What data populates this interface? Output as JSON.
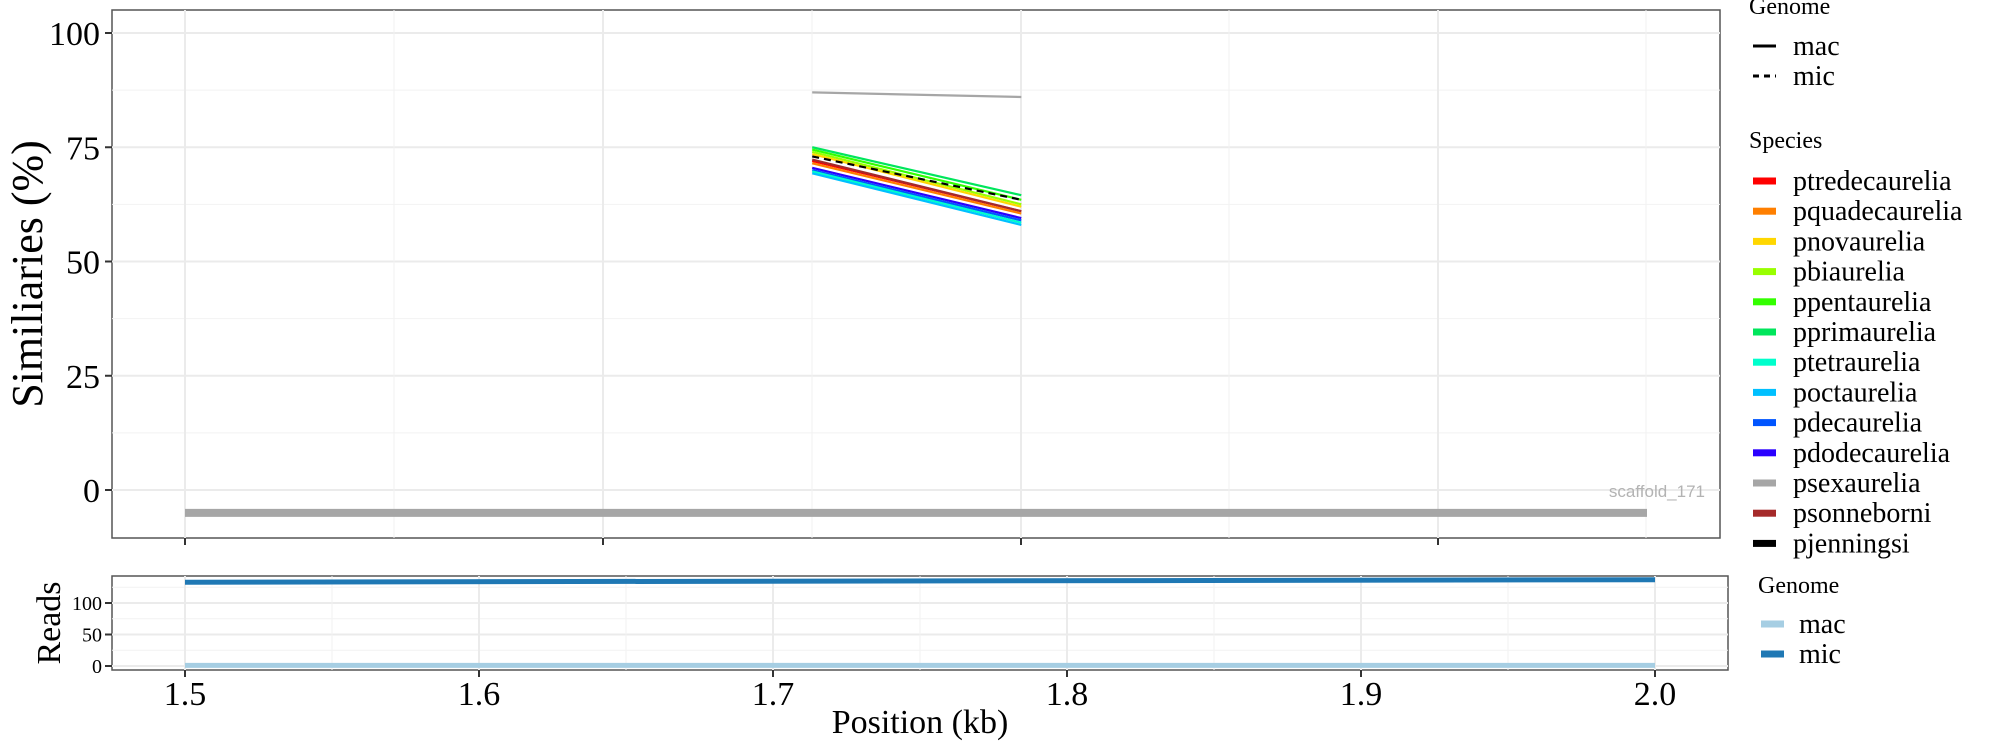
{
  "chart_data": [
    {
      "type": "line",
      "panel": "similarity",
      "ylabel": "Similiaries (%)",
      "xlabel": "",
      "ylim": [
        -10.5,
        105
      ],
      "xlim": [
        1.5,
        2.0
      ],
      "yticks": [
        "0",
        "25",
        "50",
        "75",
        "100"
      ],
      "ytick_values": [
        0,
        25,
        50,
        75,
        100
      ],
      "grid": true,
      "annotation": "scaffold_171",
      "scaffold_bar": {
        "x": [
          1.5,
          2.0
        ],
        "y": -5,
        "color": "#a6a6a6"
      },
      "series": [
        {
          "name": "psexaurelia",
          "genome": "mac",
          "color": "#a6a6a6",
          "x": [
            1.7145,
            1.786
          ],
          "y": [
            87,
            86
          ]
        },
        {
          "name": "pprimaurelia",
          "genome": "mac",
          "color": "#00e65c",
          "x": [
            1.7145,
            1.786
          ],
          "y": [
            75,
            64.5
          ]
        },
        {
          "name": "ppentaurelia",
          "genome": "mac",
          "color": "#33ff00",
          "x": [
            1.7145,
            1.786
          ],
          "y": [
            74.5,
            63.5
          ]
        },
        {
          "name": "pbiaurelia",
          "genome": "mac",
          "color": "#99ff00",
          "x": [
            1.7145,
            1.786
          ],
          "y": [
            74,
            62.5
          ]
        },
        {
          "name": "pnovaurelia",
          "genome": "mac",
          "color": "#ffd700",
          "x": [
            1.7145,
            1.786
          ],
          "y": [
            73.5,
            62
          ]
        },
        {
          "name": "pjenningsi",
          "genome": "mic",
          "color": "#000000",
          "x": [
            1.7145,
            1.786
          ],
          "y": [
            73,
            63.5
          ]
        },
        {
          "name": "ptredecaurelia",
          "genome": "mac",
          "color": "#ff0000",
          "x": [
            1.7145,
            1.786
          ],
          "y": [
            72,
            61
          ]
        },
        {
          "name": "psonneborni",
          "genome": "mac",
          "color": "#a52a2a",
          "x": [
            1.7145,
            1.786
          ],
          "y": [
            72.3,
            61
          ]
        },
        {
          "name": "pquadecaurelia",
          "genome": "mac",
          "color": "#ff7f00",
          "x": [
            1.7145,
            1.786
          ],
          "y": [
            71.5,
            60.5
          ]
        },
        {
          "name": "pdodecaurelia",
          "genome": "mac",
          "color": "#2a00ff",
          "x": [
            1.7145,
            1.786
          ],
          "y": [
            70.5,
            59.5
          ]
        },
        {
          "name": "pdecaurelia",
          "genome": "mac",
          "color": "#0055ff",
          "x": [
            1.7145,
            1.786
          ],
          "y": [
            70,
            59
          ]
        },
        {
          "name": "ptetraurelia",
          "genome": "mac",
          "color": "#00ffcc",
          "x": [
            1.7145,
            1.786
          ],
          "y": [
            69.7,
            58.5
          ]
        },
        {
          "name": "poctaurelia",
          "genome": "mac",
          "color": "#00c0ff",
          "x": [
            1.7145,
            1.786
          ],
          "y": [
            69.3,
            58
          ]
        }
      ],
      "legends": [
        {
          "title": "Genome",
          "entries": [
            {
              "label": "mac",
              "style": "solid"
            },
            {
              "label": "mic",
              "style": "dashed"
            }
          ]
        },
        {
          "title": "Species",
          "entries": [
            {
              "label": "ptredecaurelia",
              "color": "#ff0000"
            },
            {
              "label": "pquadecaurelia",
              "color": "#ff7f00"
            },
            {
              "label": "pnovaurelia",
              "color": "#ffd700"
            },
            {
              "label": "pbiaurelia",
              "color": "#99ff00"
            },
            {
              "label": "ppentaurelia",
              "color": "#33ff00"
            },
            {
              "label": "pprimaurelia",
              "color": "#00e65c"
            },
            {
              "label": "ptetraurelia",
              "color": "#00ffcc"
            },
            {
              "label": "poctaurelia",
              "color": "#00c0ff"
            },
            {
              "label": "pdecaurelia",
              "color": "#0055ff"
            },
            {
              "label": "pdodecaurelia",
              "color": "#2a00ff"
            },
            {
              "label": "psexaurelia",
              "color": "#a6a6a6"
            },
            {
              "label": "psonneborni",
              "color": "#a52a2a"
            },
            {
              "label": "pjenningsi",
              "color": "#000000"
            }
          ]
        }
      ]
    },
    {
      "type": "line",
      "panel": "reads",
      "ylabel": "Reads",
      "xlabel": "Position (kb)",
      "xlim": [
        1.475,
        2.025
      ],
      "ylim": [
        -6,
        150
      ],
      "xticks": [
        "1.5",
        "1.6",
        "1.7",
        "1.8",
        "1.9",
        "2.0"
      ],
      "xtick_values": [
        1.5,
        1.6,
        1.7,
        1.8,
        1.9,
        2.0
      ],
      "yticks": [
        "0",
        "50",
        "100"
      ],
      "ytick_values": [
        0,
        50,
        100
      ],
      "grid": true,
      "series": [
        {
          "name": "mac",
          "color": "#a6cee3",
          "x": [
            1.5,
            2.0
          ],
          "y": [
            1,
            1
          ]
        },
        {
          "name": "mic",
          "color": "#1f78b4",
          "x": [
            1.5,
            2.0
          ],
          "y": [
            133,
            137
          ]
        }
      ],
      "legends": [
        {
          "title": "Genome",
          "entries": [
            {
              "label": "mac",
              "color": "#a6cee3"
            },
            {
              "label": "mic",
              "color": "#1f78b4"
            }
          ]
        }
      ]
    }
  ]
}
